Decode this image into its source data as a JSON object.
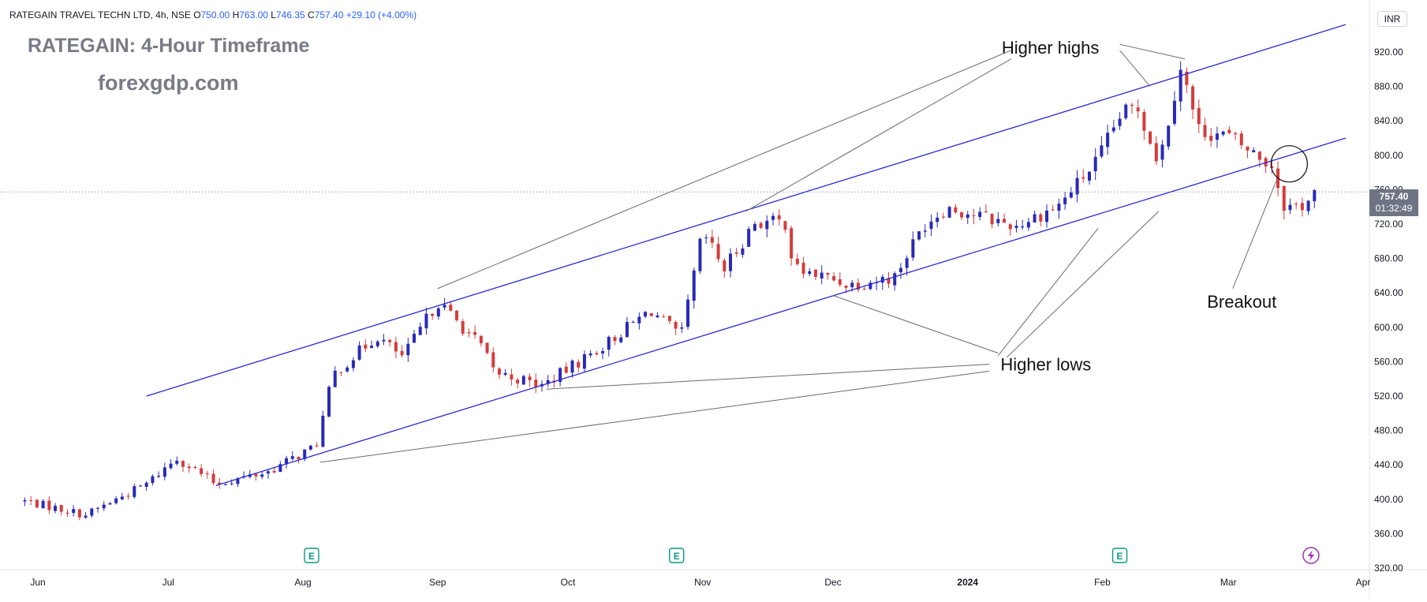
{
  "header": {
    "symbol": "RATEGAIN TRAVEL TECHN LTD, 4h, NSE",
    "o_label": "O",
    "o_value": "750.00",
    "h_label": "H",
    "h_value": "763.00",
    "l_label": "L",
    "l_value": "746.35",
    "c_label": "C",
    "c_value": "757.40",
    "change": "+29.10 (+4.00%)"
  },
  "watermark": {
    "title": "RATEGAIN: 4-Hour Timeframe",
    "site": "forexgdp.com"
  },
  "currency_button": "INR",
  "last_price": {
    "price": "757.40",
    "countdown": "01:32:49"
  },
  "colors": {
    "up": "#2929b8",
    "down": "#d43c3c",
    "channel": "#2a2ad4",
    "annotation": "#6b6b6b",
    "earnings": "#089981"
  },
  "icons": {
    "earnings": "earnings-e-icon",
    "dividend": "lightning-icon"
  },
  "chart_data": {
    "type": "candlestick",
    "x_ticks": [
      "Jun",
      "Jul",
      "Aug",
      "Sep",
      "Oct",
      "Nov",
      "Dec",
      "2024",
      "Feb",
      "Mar",
      "Apr"
    ],
    "y_ticks": [
      320,
      360,
      400,
      440,
      480,
      520,
      560,
      600,
      640,
      680,
      720,
      760,
      800,
      840,
      880,
      920
    ],
    "ylim": [
      310,
      955
    ],
    "grid": false,
    "annotations": {
      "higher_highs": "Higher highs",
      "higher_lows": "Higher lows",
      "breakout": "Breakout"
    },
    "anchors": [
      {
        "date": "2023-05-29",
        "price": 398
      },
      {
        "date": "2023-06-12",
        "price": 382
      },
      {
        "date": "2023-06-26",
        "price": 418
      },
      {
        "date": "2023-07-03",
        "price": 448
      },
      {
        "date": "2023-07-12",
        "price": 418
      },
      {
        "date": "2023-07-24",
        "price": 432
      },
      {
        "date": "2023-08-04",
        "price": 462
      },
      {
        "date": "2023-08-08",
        "price": 545
      },
      {
        "date": "2023-08-18",
        "price": 590
      },
      {
        "date": "2023-08-24",
        "price": 565
      },
      {
        "date": "2023-09-01",
        "price": 630
      },
      {
        "date": "2023-09-11",
        "price": 578
      },
      {
        "date": "2023-09-14",
        "price": 548
      },
      {
        "date": "2023-09-25",
        "price": 532
      },
      {
        "date": "2023-10-09",
        "price": 578
      },
      {
        "date": "2023-10-20",
        "price": 620
      },
      {
        "date": "2023-10-27",
        "price": 588
      },
      {
        "date": "2023-11-01",
        "price": 710
      },
      {
        "date": "2023-11-06",
        "price": 668
      },
      {
        "date": "2023-11-13",
        "price": 722
      },
      {
        "date": "2023-11-20",
        "price": 722
      },
      {
        "date": "2023-11-22",
        "price": 668
      },
      {
        "date": "2023-12-05",
        "price": 650
      },
      {
        "date": "2023-12-15",
        "price": 658
      },
      {
        "date": "2023-12-22",
        "price": 720
      },
      {
        "date": "2023-12-27",
        "price": 740
      },
      {
        "date": "2024-01-12",
        "price": 718
      },
      {
        "date": "2024-01-22",
        "price": 742
      },
      {
        "date": "2024-01-31",
        "price": 795
      },
      {
        "date": "2024-02-05",
        "price": 845
      },
      {
        "date": "2024-02-09",
        "price": 858
      },
      {
        "date": "2024-02-14",
        "price": 792
      },
      {
        "date": "2024-02-19",
        "price": 905
      },
      {
        "date": "2024-02-23",
        "price": 830
      },
      {
        "date": "2024-03-01",
        "price": 822
      },
      {
        "date": "2024-03-05",
        "price": 808
      },
      {
        "date": "2024-03-11",
        "price": 788
      },
      {
        "date": "2024-03-14",
        "price": 740
      },
      {
        "date": "2024-03-18",
        "price": 742
      },
      {
        "date": "2024-03-21",
        "price": 757
      }
    ],
    "channel_upper": [
      {
        "date": "2023-06-26",
        "price": 520
      },
      {
        "date": "2024-03-28",
        "price": 952
      }
    ],
    "channel_lower": [
      {
        "date": "2023-07-12",
        "price": 416
      },
      {
        "date": "2024-03-28",
        "price": 820
      }
    ],
    "last_close": 757.4
  }
}
